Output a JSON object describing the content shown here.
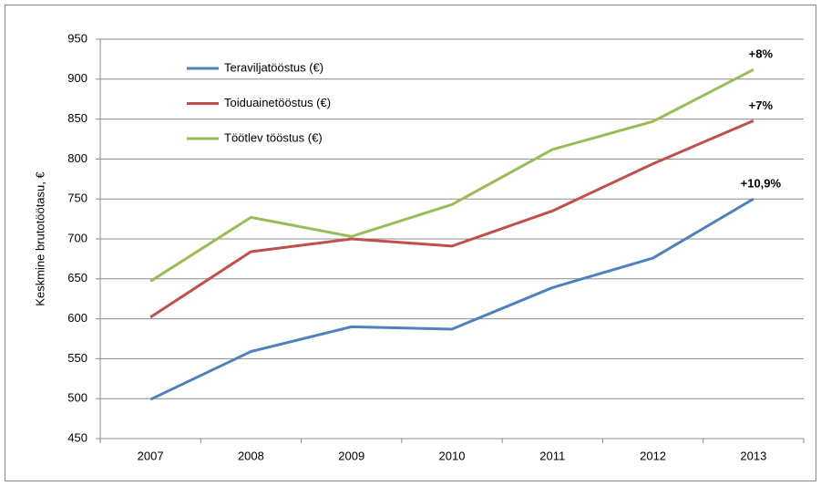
{
  "chart_data": {
    "type": "line",
    "y_label": "Keskmine brutotöötasu, €",
    "categories": [
      "2007",
      "2008",
      "2009",
      "2010",
      "2011",
      "2012",
      "2013"
    ],
    "series": [
      {
        "name": "Teraviljatööstus (€)",
        "color": "#4f81bd",
        "values": [
          499,
          559,
          590,
          587,
          639,
          676,
          750
        ],
        "end_label": "+10,9%"
      },
      {
        "name": "Toiduainetööstus (€)",
        "color": "#c0504d",
        "values": [
          602,
          684,
          700,
          691,
          735,
          794,
          848
        ],
        "end_label": "+7%"
      },
      {
        "name": "Töötlev tööstus (€)",
        "color": "#9bbb59",
        "values": [
          647,
          727,
          703,
          743,
          812,
          847,
          912
        ],
        "end_label": "+8%"
      }
    ],
    "ylim": [
      450,
      950
    ],
    "yticks": [
      450,
      500,
      550,
      600,
      650,
      700,
      750,
      800,
      850,
      900,
      950
    ],
    "grid": true
  }
}
